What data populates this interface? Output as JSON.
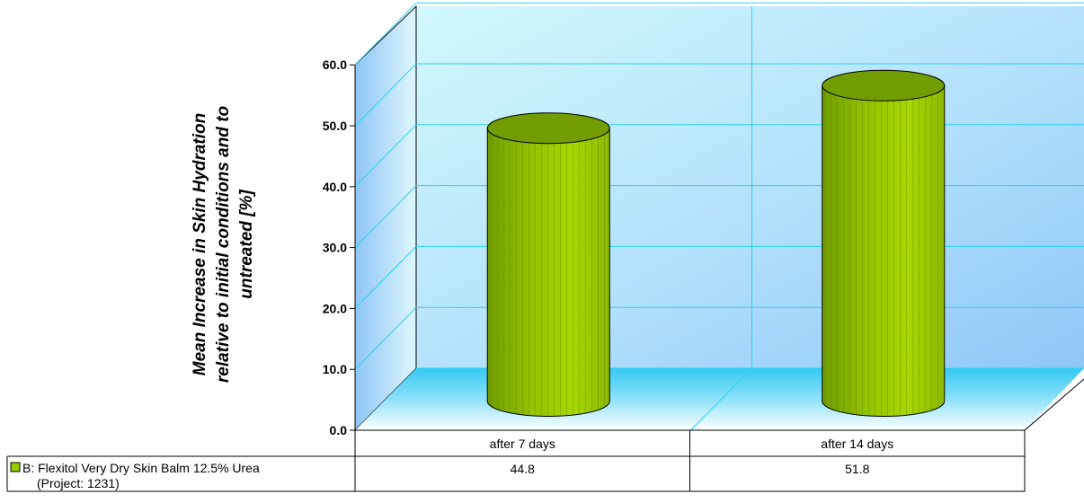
{
  "chart_data": {
    "type": "bar",
    "ylabel_lines": [
      "Mean Increase in Skin Hydration",
      "relative to initial conditions and to",
      "untreated [%]"
    ],
    "yticks": [
      "0.0",
      "10.0",
      "20.0",
      "30.0",
      "40.0",
      "50.0",
      "60.0"
    ],
    "ylim": [
      0,
      60
    ],
    "categories": [
      "after 7 days",
      "after 14 days"
    ],
    "series": [
      {
        "name": "B: Flexitol Very Dry Skin Balm 12.5% Urea (Project: 1231)",
        "name_lines": [
          "B: Flexitol Very Dry Skin Balm 12.5% Urea",
          "(Project: 1231)"
        ],
        "values": [
          44.8,
          51.8
        ],
        "value_labels": [
          "44.8",
          "51.8"
        ],
        "color": "#99cc00"
      }
    ],
    "grid": true,
    "legend": "data-table-bottom-left"
  }
}
